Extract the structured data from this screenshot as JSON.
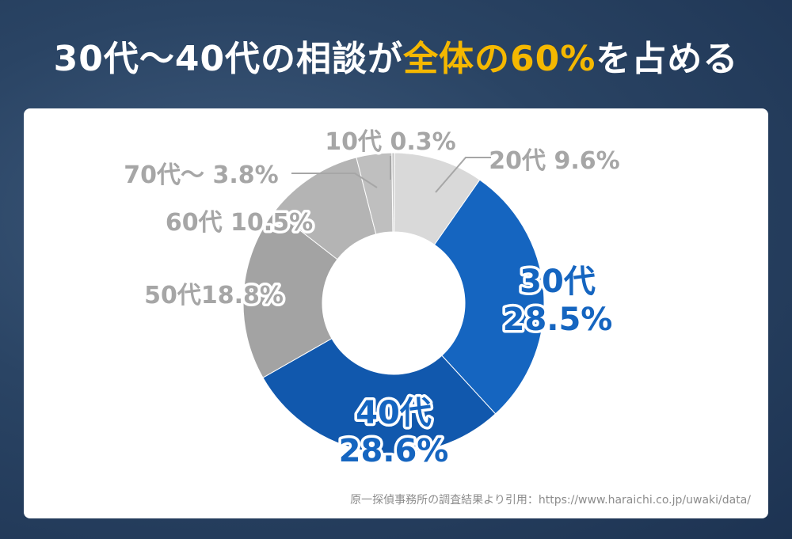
{
  "title": {
    "part1": "30代～40代の相談が",
    "highlight": "全体の60%",
    "part2": "を占める"
  },
  "colors": {
    "highlight": "#f5b800",
    "blue": "#1565c0",
    "gray_label": "#999999"
  },
  "chart_data": {
    "type": "pie",
    "donut": true,
    "slices": [
      {
        "category": "10代",
        "label": "10代 0.3%",
        "value": 0.3,
        "color": "#c9c9c9",
        "label_color": "#a6a6a6"
      },
      {
        "category": "20代",
        "label": "20代 9.6%",
        "value": 9.6,
        "color": "#d9d9d9",
        "label_color": "#a6a6a6"
      },
      {
        "category": "30代",
        "label_line1": "30代",
        "label_line2": "28.5%",
        "value": 28.5,
        "color": "#1565c0",
        "label_color": "#1565c0"
      },
      {
        "category": "40代",
        "label_line1": "40代",
        "label_line2": "28.6%",
        "value": 28.6,
        "color": "#1158ad",
        "label_color": "#1565c0"
      },
      {
        "category": "50代",
        "label": "50代18.8%",
        "value": 18.8,
        "color": "#a3a3a3",
        "label_color": "#a6a6a6"
      },
      {
        "category": "60代",
        "label": "60代 10.5%",
        "value": 10.5,
        "color": "#b4b4b4",
        "label_color": "#a6a6a6"
      },
      {
        "category": "70代～",
        "label": "70代～ 3.8%",
        "value": 3.8,
        "color": "#bfbfbf",
        "label_color": "#a6a6a6"
      }
    ]
  },
  "source": "原一探偵事務所の調査結果より引用：https://www.haraichi.co.jp/uwaki/data/"
}
